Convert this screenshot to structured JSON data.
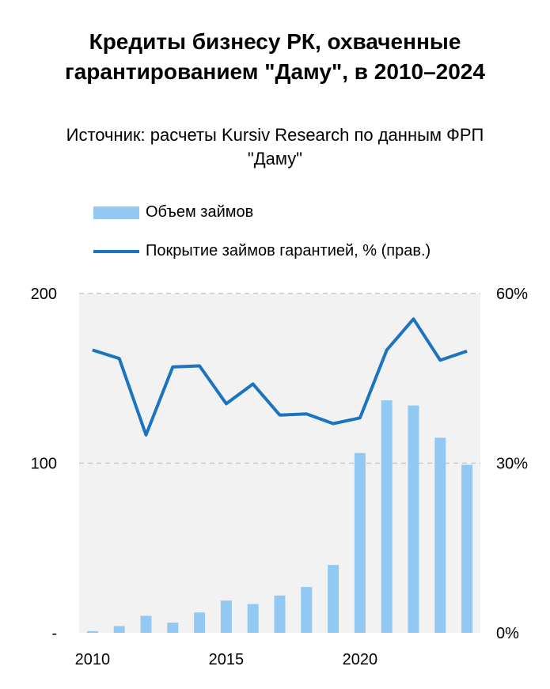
{
  "chart_data": {
    "type": "bar+line",
    "title": "Кредиты бизнесу РК, охваченные гарантированием \"Даму\", в 2010–2024",
    "subtitle": "Источник: расчеты Kursiv Research по данным ФРП \"Даму\"",
    "x": [
      2010,
      2011,
      2012,
      2013,
      2014,
      2015,
      2016,
      2017,
      2018,
      2019,
      2020,
      2021,
      2022,
      2023,
      2024
    ],
    "x_tick_labels": [
      "2010",
      "2015",
      "2020"
    ],
    "series": [
      {
        "name": "Объем займов",
        "type": "bar",
        "axis": "left",
        "color": "#92c9f3",
        "values": [
          1,
          4,
          10,
          6,
          12,
          19,
          17,
          22,
          27,
          40,
          106,
          137,
          134,
          115,
          99
        ]
      },
      {
        "name": "Покрытие займов гарантией, % (прав.)",
        "type": "line",
        "axis": "right",
        "color": "#1b74bf",
        "values": [
          50,
          48.5,
          35,
          47,
          47.2,
          40.5,
          44,
          38.5,
          38.7,
          37,
          38,
          50,
          55.5,
          48.2,
          49.8
        ]
      }
    ],
    "y_left": {
      "ylim": [
        0,
        200
      ],
      "tick_labels": [
        "-",
        "100",
        "200"
      ]
    },
    "y_right": {
      "ylim": [
        0,
        60
      ],
      "tick_labels": [
        "0%",
        "30%",
        "60%"
      ]
    },
    "grid": true,
    "legend_position": "top"
  }
}
